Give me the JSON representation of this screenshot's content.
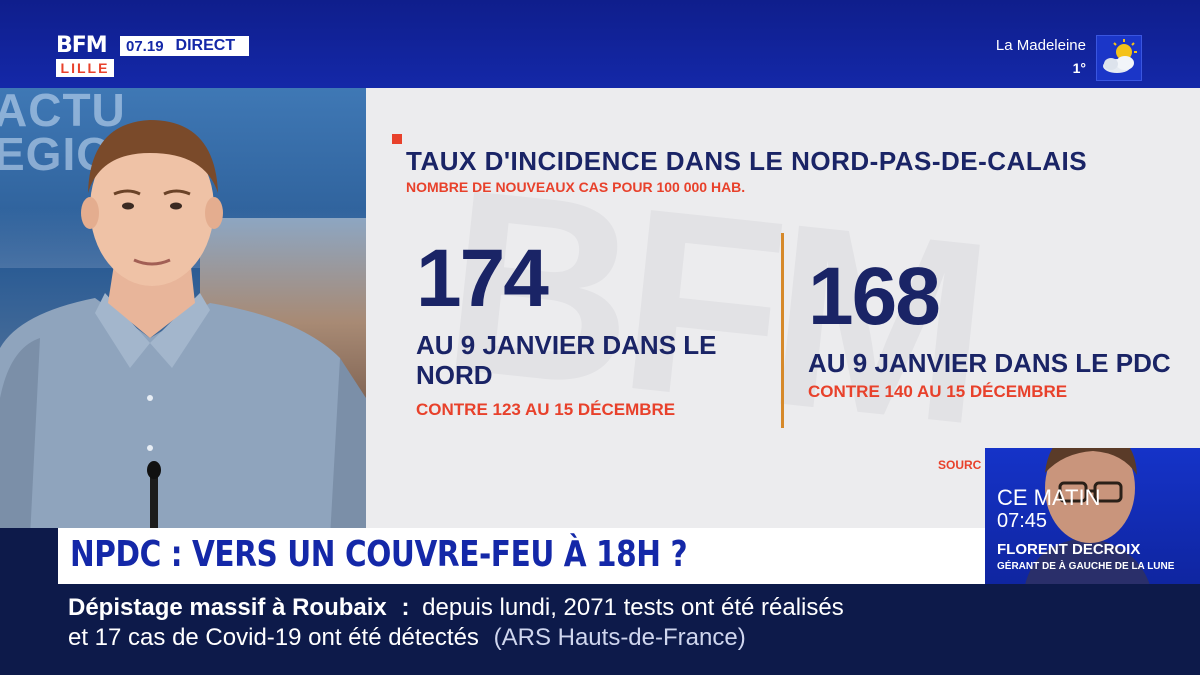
{
  "channel": {
    "logo_main": "BFM",
    "logo_city": "LILLE",
    "time": "07.19",
    "live_label": "DIRECT"
  },
  "weather": {
    "location": "La Madeleine",
    "temperature": "1°",
    "icon": "partly-cloudy-sun-icon"
  },
  "studio": {
    "backdrop_text_1": "ACTU",
    "backdrop_text_2": "EGION"
  },
  "infographic": {
    "watermark": "BFM",
    "title": "TAUX D'INCIDENCE DANS LE NORD-PAS-DE-CALAIS",
    "subtitle": "NOMBRE DE NOUVEAUX CAS POUR 100 000 HAB.",
    "stats": [
      {
        "value": "174",
        "description": "AU 9 JANVIER DANS LE NORD",
        "comparison": "CONTRE 123 AU 15 DÉCEMBRE"
      },
      {
        "value": "168",
        "description": "AU 9 JANVIER DANS LE PDC",
        "comparison": "CONTRE 140 AU 15 DÉCEMBRE"
      }
    ],
    "source": "SOURC"
  },
  "guest": {
    "program": "CE MATIN",
    "time": "07:45",
    "name": "FLORENT DECROIX",
    "role": "GÉRANT DE À GAUCHE DE LA LUNE"
  },
  "headline": "NPDC : VERS UN COUVRE-FEU À 18H ?",
  "ticker": {
    "label": "Dépistage massif à Roubaix",
    "separator": ":",
    "line1_text": "depuis lundi, 2071 tests ont été réalisés",
    "line2_text": "et 17 cas de Covid-19 ont été détectés",
    "source": "(ARS Hauts-de-France)"
  },
  "colors": {
    "brand_blue": "#1428a8",
    "navy": "#1a2466",
    "accent_red": "#e8412b",
    "divider_orange": "#d6892a"
  }
}
